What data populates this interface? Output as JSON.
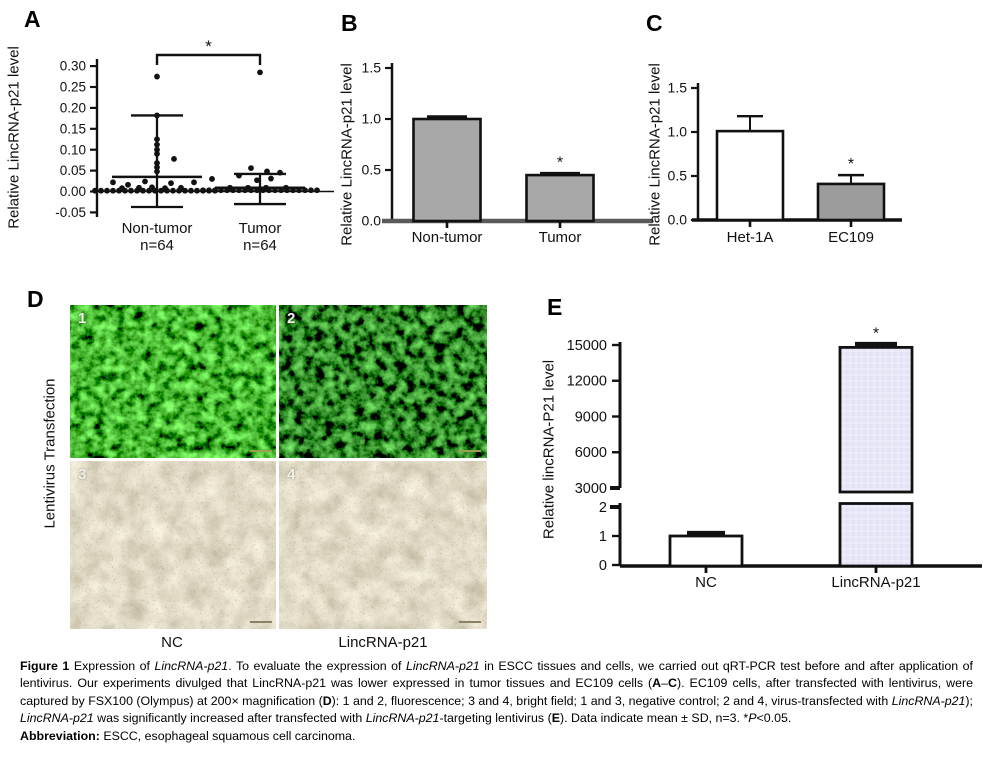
{
  "figure": {
    "panels": {
      "A": {
        "letter": "A"
      },
      "B": {
        "letter": "B"
      },
      "C": {
        "letter": "C"
      },
      "D": {
        "letter": "D",
        "ylabel": "Lentivirus Transfection",
        "image_labels": [
          "1",
          "2",
          "3",
          "4"
        ],
        "col_labels": [
          "NC",
          "LincRNA-p21"
        ]
      },
      "E": {
        "letter": "E"
      }
    },
    "caption": {
      "lines": [
        {
          "justify": true,
          "segments": [
            {
              "t": "Figure 1 ",
              "b": true
            },
            {
              "t": "Expression of "
            },
            {
              "t": "LincRNA-p21",
              "i": true
            },
            {
              "t": ". To evaluate the expression of "
            },
            {
              "t": "LincRNA-p21",
              "i": true
            },
            {
              "t": " in ESCC tissues and cells, we carried out qRT-PCR test before and after application of"
            }
          ]
        },
        {
          "justify": true,
          "segments": [
            {
              "t": "lentivirus. Our experiments divulged that LincRNA-p21 was lower expressed in tumor tissues and EC109 cells ("
            },
            {
              "t": "A",
              "b": true
            },
            {
              "t": "–"
            },
            {
              "t": "C",
              "b": true
            },
            {
              "t": "). EC109 cells, after transfected with lentivirus, were"
            }
          ]
        },
        {
          "justify": true,
          "segments": [
            {
              "t": "captured by FSX100 (Olympus) at 200× magnification ("
            },
            {
              "t": "D",
              "b": true
            },
            {
              "t": "): 1 and 2, fluorescence; 3 and 4, bright field; 1 and 3, negative control; 2 and 4, virus-transfected with "
            },
            {
              "t": "LincRNA-p21",
              "i": true
            },
            {
              "t": ");"
            }
          ]
        },
        {
          "justify": false,
          "segments": [
            {
              "t": "LincRNA-p21",
              "i": true
            },
            {
              "t": " was significantly increased after transfected with "
            },
            {
              "t": "LincRNA-p21",
              "i": true
            },
            {
              "t": "-targeting lentivirus ("
            },
            {
              "t": "E",
              "b": true
            },
            {
              "t": "). Data indicate mean ± SD, n=3. *"
            },
            {
              "t": "P",
              "i": true
            },
            {
              "t": "<0.05."
            }
          ]
        },
        {
          "justify": false,
          "segments": [
            {
              "t": "Abbreviation: ",
              "b": true
            },
            {
              "t": "ESCC, esophageal squamous cell carcinoma."
            }
          ]
        }
      ]
    }
  },
  "chart_data": [
    {
      "panel": "A",
      "type": "scatter",
      "title": "",
      "ylabel": "Relative LincRNA-p21 level",
      "categories": [
        "Non-tumor",
        "Tumor"
      ],
      "group_sublabels": [
        "n=64",
        "n=64"
      ],
      "yticks": [
        "0.30",
        "0.25",
        "0.20",
        "0.15",
        "0.10",
        "0.05",
        "0.00",
        "-0.05"
      ],
      "ylim": [
        -0.06,
        0.33
      ],
      "grid": false,
      "significance": {
        "label": "*",
        "groups": [
          0,
          1
        ]
      },
      "stats": [
        {
          "mean": 0.035,
          "sd_top": 0.182,
          "sd_bottom": -0.037
        },
        {
          "mean": 0.009,
          "sd_top": 0.042,
          "sd_bottom": -0.03
        }
      ],
      "points": [
        [
          {
            "dx": 0,
            "y": 0.275
          },
          {
            "dx": 0,
            "y": 0.182
          },
          {
            "dx": 0,
            "y": 0.125
          },
          {
            "dx": 0,
            "y": 0.112
          },
          {
            "dx": 0,
            "y": 0.1
          },
          {
            "dx": 0,
            "y": 0.09
          },
          {
            "dx": 17,
            "y": 0.078
          },
          {
            "dx": 0,
            "y": 0.068
          },
          {
            "dx": 0,
            "y": 0.058
          },
          {
            "dx": 0,
            "y": 0.048
          },
          {
            "dx": 55,
            "y": 0.03
          },
          {
            "dx": -12,
            "y": 0.024
          },
          {
            "dx": -44,
            "y": 0.022
          },
          {
            "dx": 37,
            "y": 0.022
          },
          {
            "dx": 14,
            "y": 0.02
          },
          {
            "dx": -29,
            "y": 0.016
          },
          {
            "dx": -5,
            "y": 0.01
          },
          {
            "dx": -18,
            "y": 0.009
          },
          {
            "dx": 24,
            "y": 0.009
          },
          {
            "dx": -35,
            "y": 0.008
          },
          {
            "dx": 8,
            "y": 0.008
          },
          {
            "dx": -62,
            "y": 0.002
          },
          {
            "dx": -56,
            "y": 0.002
          },
          {
            "dx": -50,
            "y": 0.002
          },
          {
            "dx": -44,
            "y": 0.002
          },
          {
            "dx": -38,
            "y": 0.002
          },
          {
            "dx": -32,
            "y": 0.002
          },
          {
            "dx": -26,
            "y": 0.002
          },
          {
            "dx": -20,
            "y": 0.002
          },
          {
            "dx": -14,
            "y": 0.002
          },
          {
            "dx": -8,
            "y": 0.002
          },
          {
            "dx": -2,
            "y": 0.002
          },
          {
            "dx": 4,
            "y": 0.002
          },
          {
            "dx": 10,
            "y": 0.002
          },
          {
            "dx": 16,
            "y": 0.002
          },
          {
            "dx": 22,
            "y": 0.002
          },
          {
            "dx": 28,
            "y": 0.002
          },
          {
            "dx": 34,
            "y": 0.002
          },
          {
            "dx": 40,
            "y": 0.002
          },
          {
            "dx": 46,
            "y": 0.002
          },
          {
            "dx": 52,
            "y": 0.002
          },
          {
            "dx": 58,
            "y": 0.002
          }
        ],
        [
          {
            "dx": 0,
            "y": 0.285
          },
          {
            "dx": -9,
            "y": 0.056
          },
          {
            "dx": 7,
            "y": 0.048
          },
          {
            "dx": 20,
            "y": 0.045
          },
          {
            "dx": -21,
            "y": 0.038
          },
          {
            "dx": 11,
            "y": 0.031
          },
          {
            "dx": -3,
            "y": 0.027
          },
          {
            "dx": -30,
            "y": 0.009
          },
          {
            "dx": -12,
            "y": 0.009
          },
          {
            "dx": 6,
            "y": 0.009
          },
          {
            "dx": 26,
            "y": 0.009
          },
          {
            "dx": -57,
            "y": 0.003
          },
          {
            "dx": -51,
            "y": 0.003
          },
          {
            "dx": -45,
            "y": 0.003
          },
          {
            "dx": -39,
            "y": 0.003
          },
          {
            "dx": -33,
            "y": 0.003
          },
          {
            "dx": -27,
            "y": 0.003
          },
          {
            "dx": -21,
            "y": 0.003
          },
          {
            "dx": -15,
            "y": 0.003
          },
          {
            "dx": -9,
            "y": 0.003
          },
          {
            "dx": -3,
            "y": 0.003
          },
          {
            "dx": 3,
            "y": 0.003
          },
          {
            "dx": 9,
            "y": 0.003
          },
          {
            "dx": 15,
            "y": 0.003
          },
          {
            "dx": 21,
            "y": 0.003
          },
          {
            "dx": 27,
            "y": 0.003
          },
          {
            "dx": 33,
            "y": 0.003
          },
          {
            "dx": 39,
            "y": 0.003
          },
          {
            "dx": 45,
            "y": 0.003
          },
          {
            "dx": 51,
            "y": 0.003
          },
          {
            "dx": 57,
            "y": 0.003
          }
        ]
      ]
    },
    {
      "panel": "B",
      "type": "bar",
      "title": "",
      "ylabel": "Relative LincRNA-p21 level",
      "categories": [
        "Non-tumor",
        "Tumor"
      ],
      "values": [
        1.0,
        0.45
      ],
      "errors": [
        0.02,
        0.015
      ],
      "bar_fills": [
        "#a8a8a8",
        "#a8a8a8"
      ],
      "yticks": [
        "1.5",
        "1.0",
        "0.5",
        "0.0"
      ],
      "ylim": [
        0,
        1.5
      ],
      "grid": false,
      "significance_labels": [
        null,
        "*"
      ]
    },
    {
      "panel": "C",
      "type": "bar",
      "title": "",
      "ylabel": "Relative LincRNA-p21 level",
      "categories": [
        "Het-1A",
        "EC109"
      ],
      "values": [
        1.01,
        0.41
      ],
      "errors": [
        0.17,
        0.1
      ],
      "bar_fills": [
        "#ffffff",
        "#9c9c9c"
      ],
      "yticks": [
        "1.5",
        "1.0",
        "0.5",
        "0.0"
      ],
      "ylim": [
        0,
        1.5
      ],
      "grid": false,
      "significance_labels": [
        null,
        "*"
      ]
    },
    {
      "panel": "E",
      "type": "bar-broken-axis",
      "title": "",
      "ylabel": "Relative lincRNA-P21 level",
      "categories": [
        "NC",
        "LincRNA-p21"
      ],
      "values": [
        1.0,
        14800
      ],
      "errors": [
        0.1,
        250
      ],
      "bar_fills": [
        "#ffffff",
        "#e3e3f5"
      ],
      "bar_pattern": [
        false,
        true
      ],
      "yticks_upper": [
        "15000",
        "12000",
        "9000",
        "6000",
        "3000"
      ],
      "yticks_lower": [
        "2",
        "1",
        "0"
      ],
      "axis_break": [
        2,
        3000
      ],
      "ylim_upper": [
        3000,
        15000
      ],
      "ylim_lower": [
        0,
        2
      ],
      "grid": false,
      "significance_labels": [
        null,
        "*"
      ]
    }
  ]
}
